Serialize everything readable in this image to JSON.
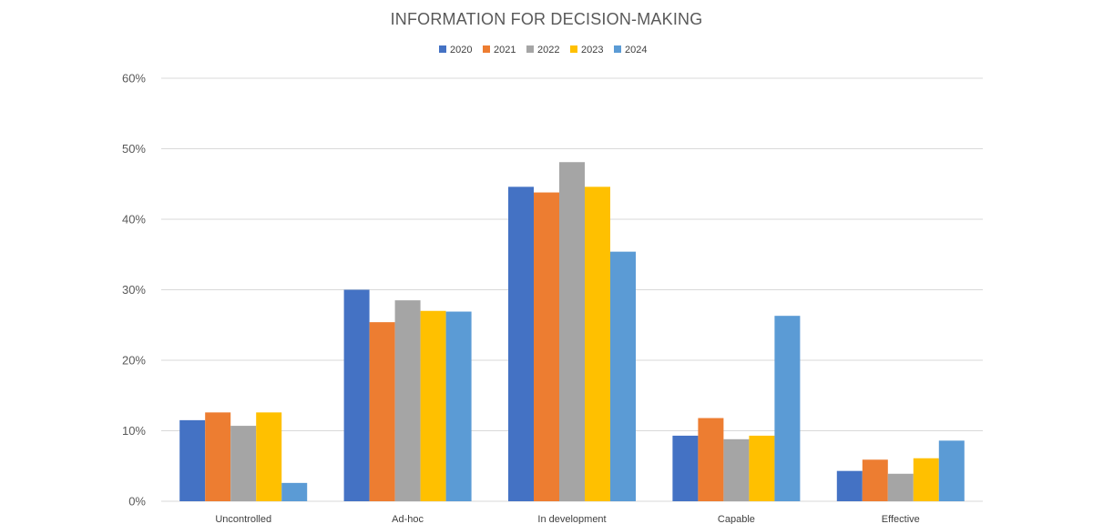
{
  "chart_data": {
    "type": "bar",
    "title": "INFORMATION FOR DECISION-MAKING",
    "xlabel": "",
    "ylabel": "",
    "categories": [
      "Uncontrolled",
      "Ad-hoc",
      "In development",
      "Capable",
      "Effective"
    ],
    "series": [
      {
        "name": "2020",
        "color": "#4472c4",
        "values": [
          11.5,
          30.0,
          44.6,
          9.3,
          4.3
        ]
      },
      {
        "name": "2021",
        "color": "#ed7d31",
        "values": [
          12.6,
          25.4,
          43.8,
          11.8,
          5.9
        ]
      },
      {
        "name": "2022",
        "color": "#a5a5a5",
        "values": [
          10.7,
          28.5,
          48.1,
          8.8,
          3.9
        ]
      },
      {
        "name": "2023",
        "color": "#ffc000",
        "values": [
          12.6,
          27.0,
          44.6,
          9.3,
          6.1
        ]
      },
      {
        "name": "2024",
        "color": "#5b9bd5",
        "values": [
          2.6,
          26.9,
          35.4,
          26.3,
          8.6
        ]
      }
    ],
    "ylim": [
      0,
      60
    ],
    "yticks": [
      "0%",
      "10%",
      "20%",
      "30%",
      "40%",
      "50%",
      "60%"
    ],
    "grid": true,
    "legend_position": "top"
  }
}
